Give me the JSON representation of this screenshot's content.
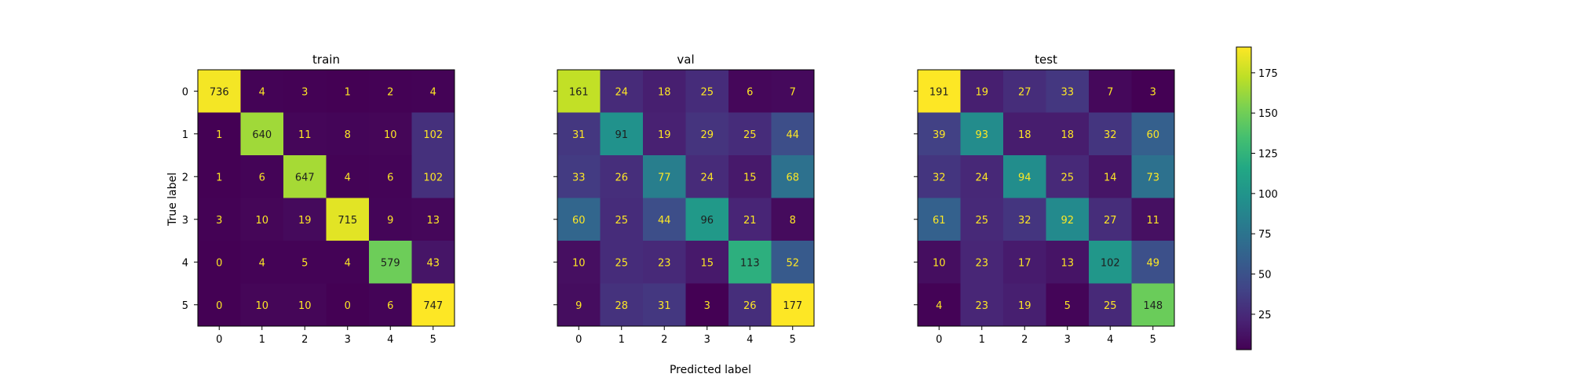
{
  "chart_data": {
    "type": "heatmap",
    "colormap": "viridis",
    "xlabel": "Predicted label",
    "ylabel": "True label",
    "tick_labels": [
      "0",
      "1",
      "2",
      "3",
      "4",
      "5"
    ],
    "colorbar": {
      "range": [
        3,
        191
      ],
      "ticks": [
        25,
        50,
        75,
        100,
        125,
        150,
        175
      ],
      "tick_labels": [
        "25",
        "50",
        "75",
        "100",
        "125",
        "150",
        "175"
      ]
    },
    "text_colors": {
      "light": "#fde725",
      "dark": "#1e1e1e"
    },
    "matrices": [
      {
        "title": "train",
        "values": [
          [
            736,
            4,
            3,
            1,
            2,
            4
          ],
          [
            1,
            640,
            11,
            8,
            10,
            102
          ],
          [
            1,
            6,
            647,
            4,
            6,
            102
          ],
          [
            3,
            10,
            19,
            715,
            9,
            13
          ],
          [
            0,
            4,
            5,
            4,
            579,
            43
          ],
          [
            0,
            10,
            10,
            0,
            6,
            747
          ]
        ]
      },
      {
        "title": "val",
        "values": [
          [
            161,
            24,
            18,
            25,
            6,
            7
          ],
          [
            31,
            91,
            19,
            29,
            25,
            44
          ],
          [
            33,
            26,
            77,
            24,
            15,
            68
          ],
          [
            60,
            25,
            44,
            96,
            21,
            8
          ],
          [
            10,
            25,
            23,
            15,
            113,
            52
          ],
          [
            9,
            28,
            31,
            3,
            26,
            177
          ]
        ]
      },
      {
        "title": "test",
        "values": [
          [
            191,
            19,
            27,
            33,
            7,
            3
          ],
          [
            39,
            93,
            18,
            18,
            32,
            60
          ],
          [
            32,
            24,
            94,
            25,
            14,
            73
          ],
          [
            61,
            25,
            32,
            92,
            27,
            11
          ],
          [
            10,
            23,
            17,
            13,
            102,
            49
          ],
          [
            4,
            23,
            19,
            5,
            25,
            148
          ]
        ]
      }
    ]
  }
}
